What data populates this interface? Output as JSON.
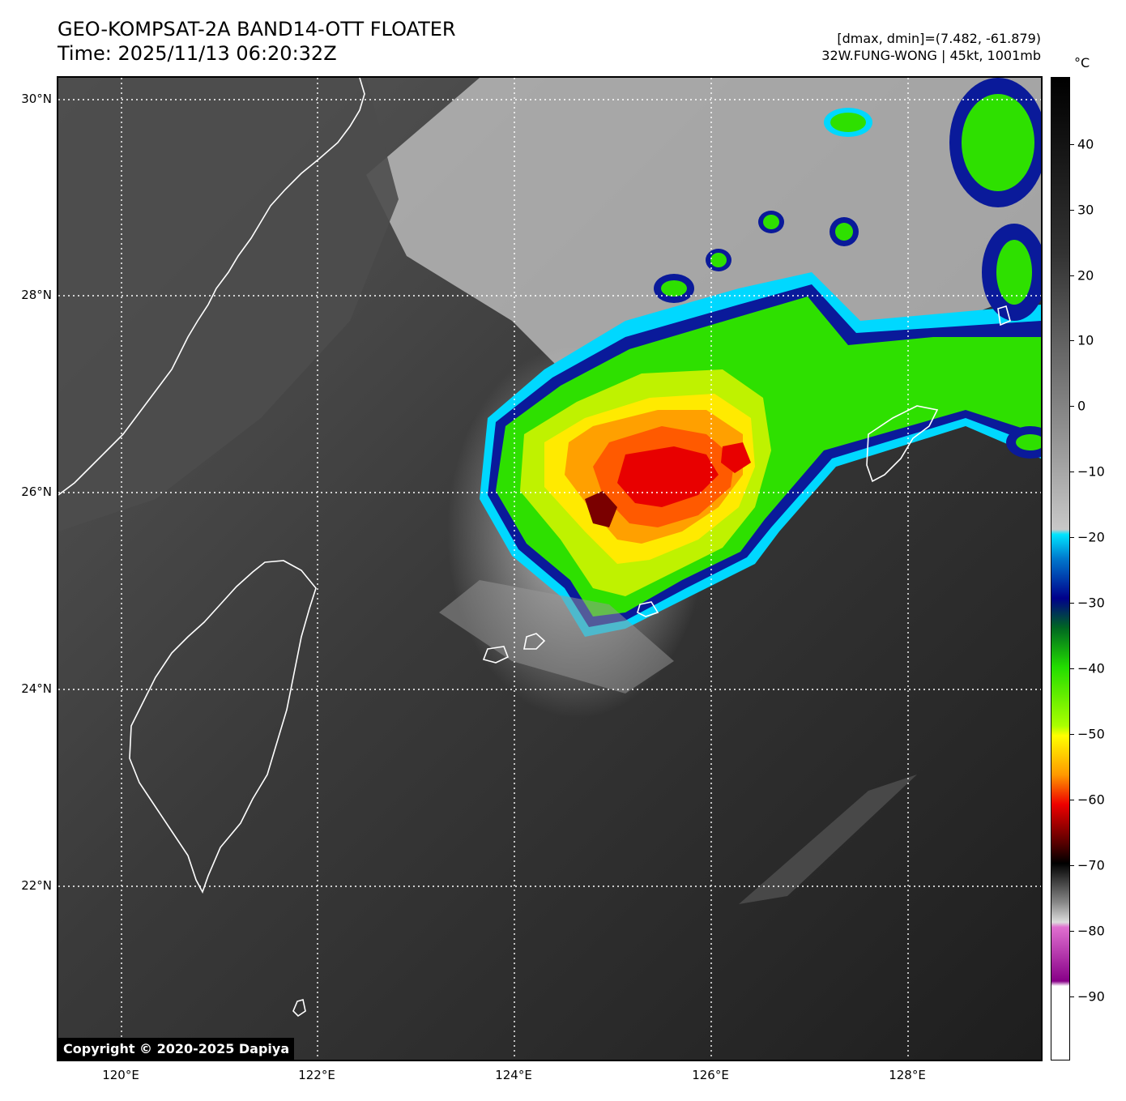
{
  "title": {
    "line1": "GEO-KOMPSAT-2A BAND14-OTT FLOATER",
    "line2": "Time: 2025/11/13 06:20:32Z"
  },
  "info": {
    "line1": "[dmax, dmin]=(7.482, -61.879)",
    "line2": "32W.FUNG-WONG | 45kt, 1001mb"
  },
  "map": {
    "lat_labels": [
      "30°N",
      "28°N",
      "26°N",
      "24°N",
      "22°N"
    ],
    "lon_labels": [
      "120°E",
      "122°E",
      "124°E",
      "126°E",
      "128°E"
    ],
    "gridline_style": "dotted white",
    "coastline_color": "#ffffff",
    "storm": "32W.FUNG-WONG"
  },
  "copyright": "Copyright © 2020-2025 Dapiya",
  "colorbar": {
    "unit": "°C",
    "tick_labels": [
      "40",
      "30",
      "20",
      "10",
      "0",
      "−10",
      "−20",
      "−30",
      "−40",
      "−50",
      "−60",
      "−70",
      "−80",
      "−90"
    ],
    "colors": {
      "warm": "#000000",
      "cold_gray": "#c8c8c8",
      "cyan": "#00e5ff",
      "blue": "#00008b",
      "green": "#22dd00",
      "yellow": "#ffff00",
      "orange": "#ff9900",
      "red": "#ee0000",
      "dark_red": "#550000",
      "magenta": "#cc44cc",
      "white": "#ffffff"
    }
  }
}
